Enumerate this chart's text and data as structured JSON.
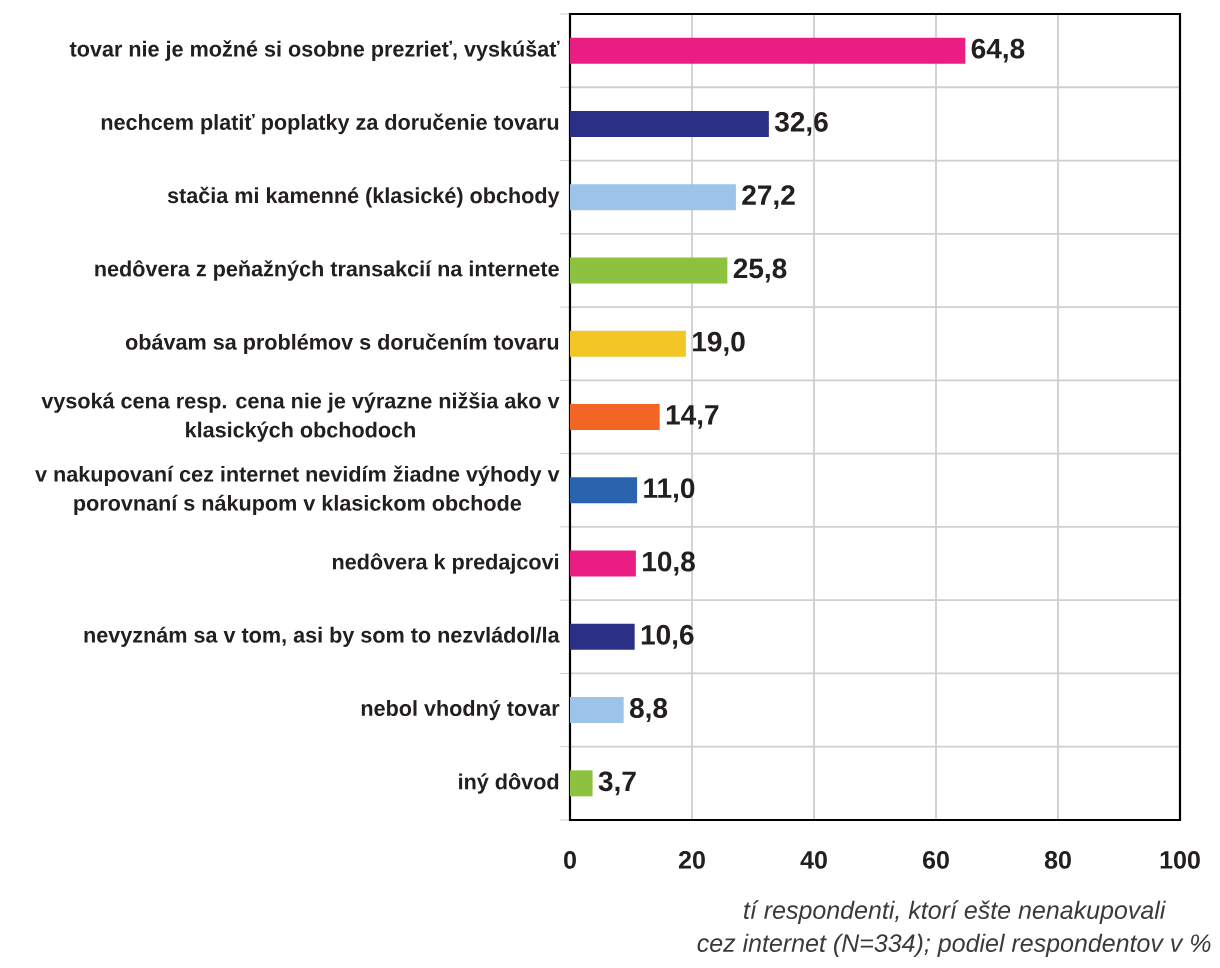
{
  "chart_data": {
    "type": "bar",
    "orientation": "horizontal",
    "categories": [
      "tovar nie je možné si osobne prezrieť, vyskúšať",
      "nechcem platiť poplatky za doručenie tovaru",
      "stačia mi kamenné (klasické) obchody",
      "nedôvera z peňažných transakcií na internete",
      "obávam sa problémov s doručením tovaru",
      "vysoká cena resp. cena nie je výrazne nižšia ako v klasických obchodoch",
      "v nakupovaní cez internet nevidím žiadne výhody v porovnaní s nákupom v klasickom obchode",
      "nedôvera k predajcovi",
      "nevyznám sa v tom, asi by som to nezvládol/la",
      "nebol vhodný tovar",
      "iný dôvod"
    ],
    "values": [
      64.8,
      32.6,
      27.2,
      25.8,
      19.0,
      14.7,
      11.0,
      10.8,
      10.6,
      8.8,
      3.7
    ],
    "value_labels": [
      "64,8",
      "32,6",
      "27,2",
      "25,8",
      "19,0",
      "14,7",
      "11,0",
      "10,8",
      "10,6",
      "8,8",
      "3,7"
    ],
    "colors": [
      "#ea1e82",
      "#2c2f86",
      "#9dc4e8",
      "#8cc23f",
      "#f3c626",
      "#f26524",
      "#2a63ae",
      "#ea1e82",
      "#2c2f86",
      "#9dc4e8",
      "#8cc23f"
    ],
    "xlim": [
      0,
      100
    ],
    "xticks": [
      0,
      20,
      40,
      60,
      80,
      100
    ],
    "grid": true,
    "annotations": [
      "tí respondenti, ktorí ešte nenakupovali",
      "cez internet (N=334); podiel respondentov v %"
    ]
  }
}
